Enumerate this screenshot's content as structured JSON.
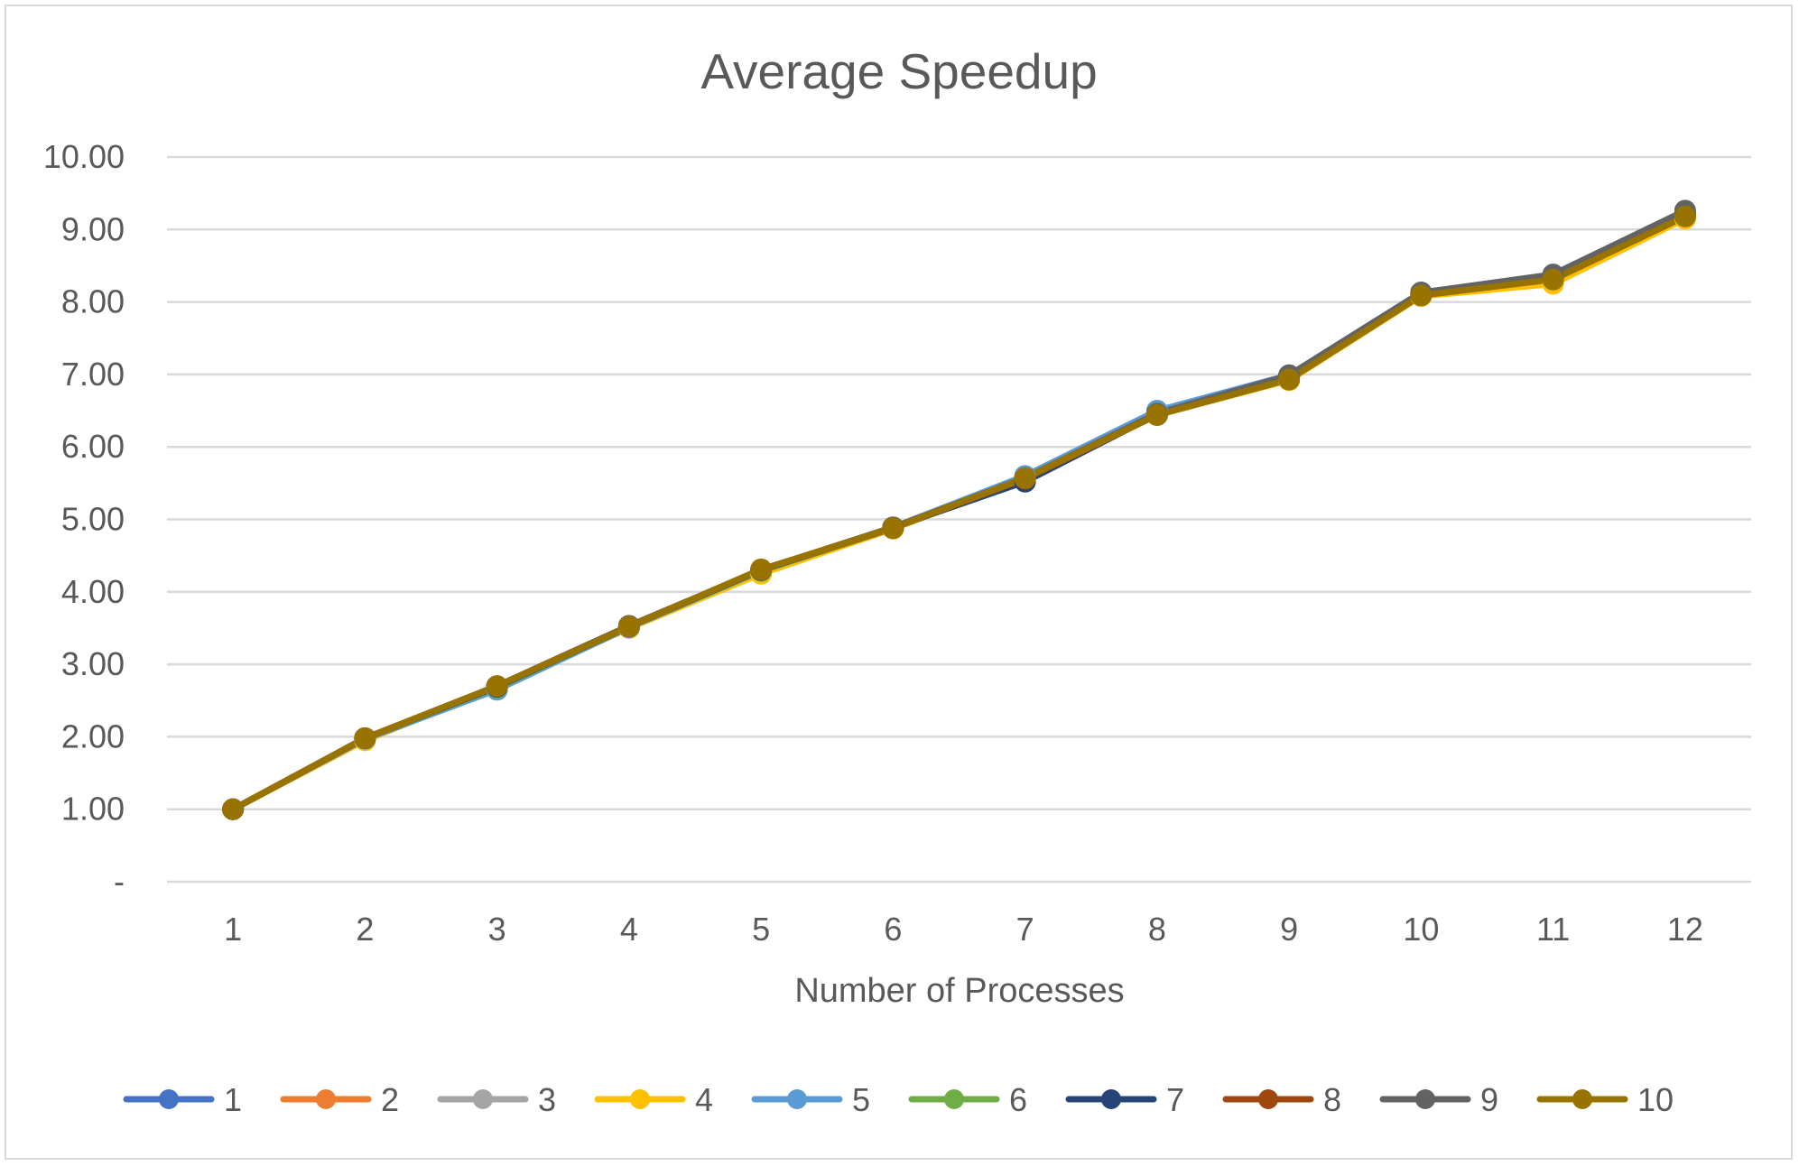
{
  "chart_data": {
    "type": "line",
    "title": "Average Speedup",
    "xlabel": "Number of Processes",
    "ylabel": "",
    "categories": [
      "1",
      "2",
      "3",
      "4",
      "5",
      "6",
      "7",
      "8",
      "9",
      "10",
      "11",
      "12"
    ],
    "y_ticks": [
      "-",
      "1.00",
      "2.00",
      "3.00",
      "4.00",
      "5.00",
      "6.00",
      "7.00",
      "8.00",
      "9.00",
      "10.00"
    ],
    "ylim": [
      0,
      10
    ],
    "grid": true,
    "legend_position": "bottom",
    "series": [
      {
        "name": "1",
        "color": "#4472C4",
        "values": [
          1.0,
          1.98,
          2.68,
          3.52,
          4.28,
          4.88,
          5.55,
          6.47,
          6.98,
          8.12,
          8.33,
          9.2
        ]
      },
      {
        "name": "2",
        "color": "#ED7D31",
        "values": [
          1.0,
          1.98,
          2.69,
          3.52,
          4.29,
          4.88,
          5.56,
          6.46,
          6.97,
          8.11,
          8.32,
          9.2
        ]
      },
      {
        "name": "3",
        "color": "#A5A5A5",
        "values": [
          1.0,
          1.97,
          2.67,
          3.51,
          4.28,
          4.88,
          5.55,
          6.47,
          6.98,
          8.12,
          8.34,
          9.22
        ]
      },
      {
        "name": "4",
        "color": "#FFC000",
        "values": [
          1.0,
          1.95,
          2.68,
          3.5,
          4.25,
          4.87,
          5.57,
          6.44,
          6.92,
          8.08,
          8.25,
          9.15
        ]
      },
      {
        "name": "5",
        "color": "#5B9BD5",
        "values": [
          1.0,
          1.97,
          2.65,
          3.51,
          4.29,
          4.89,
          5.6,
          6.5,
          6.99,
          8.13,
          8.36,
          9.24
        ]
      },
      {
        "name": "6",
        "color": "#70AD47",
        "values": [
          1.0,
          1.98,
          2.68,
          3.52,
          4.29,
          4.88,
          5.55,
          6.46,
          6.97,
          8.12,
          8.33,
          9.21
        ]
      },
      {
        "name": "7",
        "color": "#264478",
        "values": [
          1.0,
          1.98,
          2.69,
          3.52,
          4.3,
          4.89,
          5.52,
          6.45,
          6.98,
          8.13,
          8.35,
          9.23
        ]
      },
      {
        "name": "8",
        "color": "#9E480E",
        "values": [
          1.0,
          1.98,
          2.7,
          3.53,
          4.3,
          4.88,
          5.56,
          6.44,
          6.95,
          8.1,
          8.32,
          9.2
        ]
      },
      {
        "name": "9",
        "color": "#636363",
        "values": [
          1.0,
          1.98,
          2.7,
          3.53,
          4.3,
          4.89,
          5.57,
          6.46,
          6.99,
          8.13,
          8.38,
          9.26
        ]
      },
      {
        "name": "10",
        "color": "#997300",
        "values": [
          1.0,
          1.98,
          2.7,
          3.52,
          4.31,
          4.88,
          5.57,
          6.44,
          6.93,
          8.09,
          8.31,
          9.18
        ]
      }
    ]
  }
}
